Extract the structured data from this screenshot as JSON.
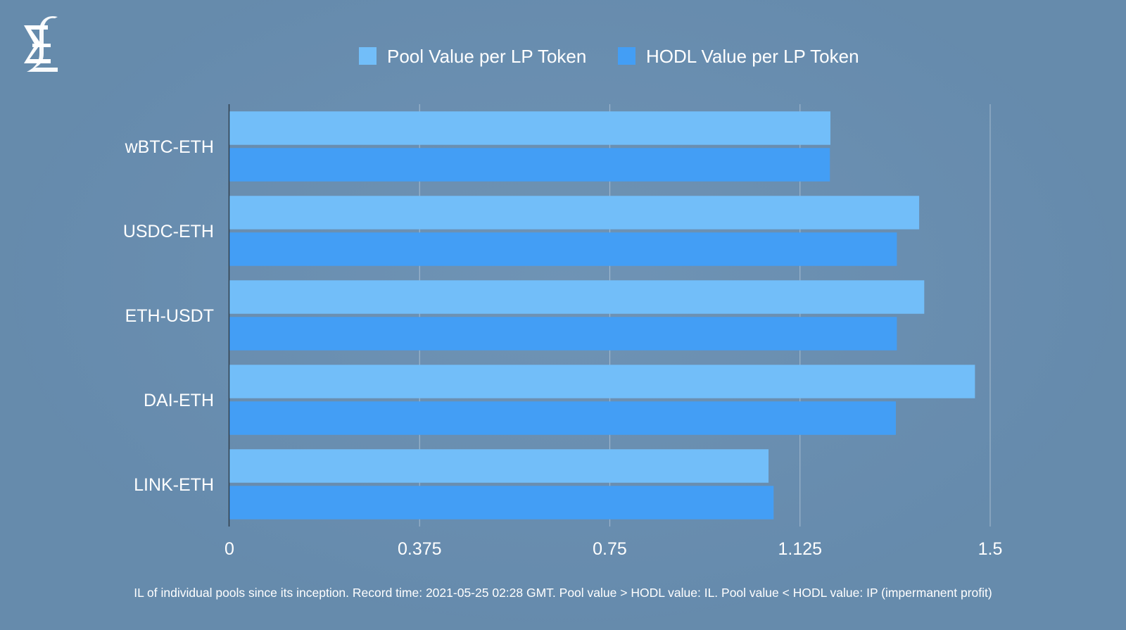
{
  "chart_data": {
    "type": "bar",
    "orientation": "horizontal",
    "categories": [
      "wBTC-ETH",
      "USDC-ETH",
      "ETH-USDT",
      "DAI-ETH",
      "LINK-ETH"
    ],
    "series": [
      {
        "name": "Pool Value per LP Token",
        "color": "#72bef9",
        "values": [
          1.185,
          1.36,
          1.37,
          1.47,
          1.063
        ]
      },
      {
        "name": "HODL Value per LP Token",
        "color": "#439ef5",
        "values": [
          1.184,
          1.316,
          1.316,
          1.314,
          1.073
        ]
      }
    ],
    "xlim": [
      0,
      1.5
    ],
    "xticks": [
      "0",
      "0.375",
      "0.75",
      "1.125",
      "1.5"
    ],
    "xtick_values": [
      0,
      0.375,
      0.75,
      1.125,
      1.5
    ],
    "grid": "vertical",
    "legend_position": "top-center",
    "footnote": "IL of individual pools since its inception. Record time: 2021-05-25 02:28 GMT. Pool value > HODL value: IL. Pool value < HODL value: IP (impermanent profit)"
  },
  "logo": {
    "icon": "sigma-pound-logo-icon"
  }
}
